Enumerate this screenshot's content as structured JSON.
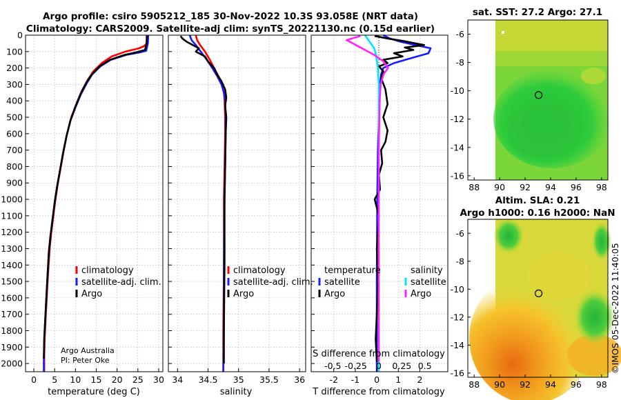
{
  "header": {
    "title_line1": "Argo profile: csiro 5905212_185 30-Nov-2022 10.3S 93.058E (NRT data)",
    "title_line2": "Climatology: CARS2009. Satellite-adj clim: synTS_20221130.nc (0.15d earlier)"
  },
  "credits": {
    "group": "Argo Australia",
    "pi": "PI: Peter Oke",
    "stamp": "©IMOS 05-Dec-2022 11:40:05"
  },
  "colors": {
    "climatology": "#ff0000",
    "satellite_adj": "#1a1aff",
    "argo": "#000000",
    "s_satellite": "#00e5ff",
    "s_argo": "#ff22ff"
  },
  "chart_data": [
    {
      "type": "line",
      "id": "temperature",
      "xlabel": "temperature (deg C)",
      "ylabel": "",
      "xlim": [
        -2,
        31
      ],
      "ylim": [
        2050,
        0
      ],
      "xticks": [
        0,
        5,
        10,
        15,
        20,
        25,
        30
      ],
      "yticks": [
        0,
        100,
        200,
        300,
        400,
        500,
        600,
        700,
        800,
        900,
        1000,
        1100,
        1200,
        1300,
        1400,
        1500,
        1600,
        1700,
        1800,
        1900,
        2000
      ],
      "legend": [
        "climatology",
        "satellite-adj. clim.",
        "Argo"
      ],
      "series": [
        {
          "name": "climatology",
          "color": "#ff0000",
          "x": [
            27.1,
            27.1,
            26.6,
            25.3,
            22.0,
            18.7,
            16.3,
            14.3,
            13.0,
            11.5,
            10.2,
            9.0,
            8.0,
            7.2,
            6.5,
            5.8,
            5.2,
            4.7,
            4.2,
            3.8,
            3.3,
            2.9,
            2.6,
            2.5,
            2.5
          ],
          "y": [
            0,
            50,
            65,
            80,
            100,
            130,
            170,
            220,
            270,
            340,
            420,
            500,
            600,
            700,
            800,
            900,
            1000,
            1100,
            1200,
            1300,
            1500,
            1700,
            1850,
            1970,
            2050
          ]
        },
        {
          "name": "satellite-adj. clim.",
          "color": "#1a1aff",
          "x": [
            27.5,
            27.4,
            27.0,
            25.5,
            22.2,
            18.5,
            16.0,
            14.0,
            12.8,
            11.3,
            10.0,
            8.8,
            7.8,
            7.0,
            6.3,
            5.6,
            5.0,
            4.5,
            4.0,
            3.6,
            3.2,
            2.8,
            2.5,
            2.4,
            2.4
          ],
          "y": [
            0,
            50,
            95,
            105,
            120,
            150,
            190,
            240,
            290,
            360,
            440,
            520,
            620,
            720,
            820,
            920,
            1020,
            1120,
            1220,
            1320,
            1500,
            1700,
            1850,
            1970,
            2050
          ]
        },
        {
          "name": "Argo",
          "color": "#000000",
          "x": [
            27.2,
            27.1,
            26.7,
            25.0,
            21.8,
            18.3,
            15.8,
            13.9,
            12.6,
            11.2,
            9.9,
            8.8,
            7.8,
            7.0,
            6.3,
            5.6,
            5.0,
            4.5,
            4.0,
            3.6,
            3.2,
            2.8,
            2.5,
            2.4
          ],
          "y": [
            5,
            50,
            90,
            102,
            120,
            150,
            190,
            240,
            290,
            360,
            440,
            520,
            620,
            720,
            820,
            920,
            1020,
            1120,
            1220,
            1320,
            1500,
            1700,
            1850,
            1970
          ]
        }
      ]
    },
    {
      "type": "line",
      "id": "salinity",
      "xlabel": "salinity",
      "ylabel": "",
      "xlim": [
        33.85,
        36.1
      ],
      "ylim": [
        2050,
        0
      ],
      "xticks": [
        34,
        34.5,
        35,
        35.5,
        36
      ],
      "tick_labels": [
        "34",
        "34.5",
        "35",
        "35.5",
        "36"
      ],
      "legend": [
        "climatology",
        "satellite-adj. clim.",
        "Argo"
      ],
      "series": [
        {
          "name": "climatology",
          "color": "#ff0000",
          "x": [
            34.3,
            34.32,
            34.37,
            34.45,
            34.53,
            34.6,
            34.67,
            34.73,
            34.76,
            34.77,
            34.78,
            34.78,
            34.77,
            34.76,
            34.76,
            34.75,
            34.75
          ],
          "y": [
            0,
            30,
            60,
            100,
            150,
            200,
            250,
            300,
            350,
            400,
            500,
            600,
            800,
            1000,
            1400,
            1800,
            2050
          ]
        },
        {
          "name": "satellite-adj. clim.",
          "color": "#1a1aff",
          "x": [
            34.2,
            34.23,
            34.3,
            34.38,
            34.48,
            34.57,
            34.65,
            34.72,
            34.76,
            34.78,
            34.79,
            34.79,
            34.78,
            34.77,
            34.76,
            34.76,
            34.75
          ],
          "y": [
            0,
            30,
            60,
            100,
            150,
            200,
            250,
            300,
            350,
            400,
            500,
            600,
            800,
            1000,
            1400,
            1800,
            2050
          ]
        },
        {
          "name": "Argo",
          "color": "#000000",
          "x": [
            34.05,
            34.08,
            34.15,
            34.25,
            34.35,
            34.3,
            34.45,
            34.5,
            34.6,
            34.65,
            34.72,
            34.78,
            34.8,
            34.78,
            34.8,
            34.79,
            34.78,
            34.77,
            34.77,
            34.76,
            34.76
          ],
          "y": [
            5,
            20,
            40,
            60,
            80,
            100,
            130,
            160,
            200,
            240,
            280,
            330,
            380,
            430,
            500,
            600,
            800,
            1000,
            1400,
            1800,
            2000
          ]
        }
      ]
    },
    {
      "type": "line",
      "id": "difference",
      "xlabel": "T difference from climatology",
      "xlabel_top": "S difference from climatology",
      "ylabel": "",
      "xlim": [
        -3.05,
        3.3
      ],
      "ylim": [
        2050,
        0
      ],
      "xticks": [
        -2,
        -1,
        0,
        1,
        2
      ],
      "s_xticks": [
        -0.5,
        -0.25,
        0,
        0.25,
        0.5
      ],
      "s_tick_labels": [
        "-0.5",
        "-0.25",
        "0",
        "0.25",
        "0.5"
      ],
      "legend_t_title": "temperature",
      "legend_s_title": "salinity",
      "legend_t": [
        "satellite",
        "Argo"
      ],
      "legend_s": [
        "satellite",
        "Argo"
      ],
      "series": [
        {
          "name": "T satellite",
          "color": "#1a1aff",
          "x": [
            0.3,
            0.6,
            1.1,
            1.8,
            2.5,
            2.4,
            1.6,
            0.8,
            0.3,
            0.2,
            0.15,
            0.1,
            0.1,
            0.05,
            0.02,
            0.0,
            0.0
          ],
          "y": [
            0,
            20,
            40,
            60,
            80,
            110,
            140,
            170,
            200,
            240,
            300,
            400,
            500,
            700,
            1000,
            1500,
            2050
          ]
        },
        {
          "name": "T Argo",
          "color": "#000000",
          "x": [
            -0.1,
            0.5,
            1.2,
            2.2,
            1.3,
            1.7,
            0.8,
            1.2,
            0.3,
            0.5,
            0.1,
            0.3,
            0.2,
            0.4,
            0.5,
            0.3,
            0.5,
            0.4,
            0.2,
            0.25,
            0.1,
            0.15,
            -0.1,
            0.1,
            0.0,
            0.05,
            0.0,
            -0.05,
            0.0
          ],
          "y": [
            5,
            20,
            35,
            60,
            75,
            90,
            110,
            130,
            150,
            170,
            190,
            220,
            260,
            330,
            420,
            500,
            580,
            650,
            700,
            780,
            850,
            940,
            1000,
            1100,
            1300,
            1500,
            1700,
            1850,
            1990
          ]
        },
        {
          "name": "S satellite",
          "color": "#00e5ff",
          "x": [
            -0.15,
            -0.1,
            -0.05,
            -0.03,
            -0.02,
            -0.01,
            0.0,
            0.0,
            0.0,
            0.0,
            0.0
          ],
          "y": [
            0,
            40,
            80,
            120,
            160,
            200,
            300,
            500,
            800,
            1400,
            2050
          ]
        },
        {
          "name": "S Argo",
          "color": "#ff22ff",
          "x": [
            -0.2,
            -0.35,
            -0.25,
            -0.15,
            -0.05,
            0.05,
            0.1,
            0.05,
            0.02,
            0.01,
            0.0,
            0.0,
            0.0
          ],
          "y": [
            5,
            30,
            60,
            90,
            120,
            160,
            200,
            240,
            300,
            400,
            700,
            1200,
            1990
          ]
        }
      ]
    },
    {
      "type": "heatmap",
      "id": "sst_map",
      "title": "sat. SST: 27.2 Argo: 27.1",
      "xlim": [
        87.5,
        98.5
      ],
      "ylim": [
        -16.3,
        -5.0
      ],
      "xticks": [
        88,
        90,
        92,
        94,
        96,
        98
      ],
      "yticks": [
        -6,
        -8,
        -10,
        -12,
        -14,
        -16
      ],
      "marker": {
        "lon": 93.058,
        "lat": -10.3
      }
    },
    {
      "type": "heatmap",
      "id": "sla_map",
      "title": "Altim. SLA: 0.21",
      "title_line2": "Argo h1000: 0.16 h2000: NaN",
      "xlim": [
        87.5,
        98.5
      ],
      "ylim": [
        -16.3,
        -5.0
      ],
      "xticks": [
        88,
        90,
        92,
        94,
        96,
        98
      ],
      "yticks": [
        -6,
        -8,
        -10,
        -12,
        -14,
        -16
      ],
      "marker": {
        "lon": 93.058,
        "lat": -10.3
      }
    }
  ]
}
